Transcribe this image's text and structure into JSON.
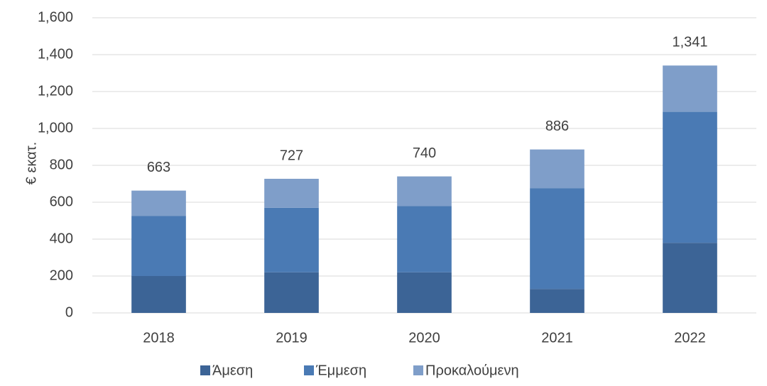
{
  "chart_data": {
    "type": "stacked_bar",
    "y_label": "€ εκατ.",
    "categories": [
      "2018",
      "2019",
      "2020",
      "2021",
      "2022"
    ],
    "series": [
      {
        "name": "Άμεση",
        "color": "#3c6496",
        "values": [
          200,
          220,
          220,
          130,
          380
        ]
      },
      {
        "name": "Έμμεση",
        "color": "#4a7ab4",
        "values": [
          325,
          350,
          360,
          545,
          710
        ]
      },
      {
        "name": "Προκαλούμενη",
        "color": "#7f9ec9",
        "values": [
          138,
          157,
          160,
          211,
          251
        ]
      }
    ],
    "totals": [
      663,
      727,
      740,
      886,
      1341
    ],
    "total_labels": [
      "663",
      "727",
      "740",
      "886",
      "1,341"
    ],
    "ylim": [
      0,
      1600
    ],
    "yticks": [
      0,
      200,
      400,
      600,
      800,
      {
        "value": 1000,
        "label": "1,000"
      },
      {
        "value": 1200,
        "label": "1,200"
      },
      {
        "value": 1400,
        "label": "1,400"
      },
      {
        "value": 1600,
        "label": "1,600"
      }
    ],
    "grid": true,
    "legend": "bottom"
  }
}
